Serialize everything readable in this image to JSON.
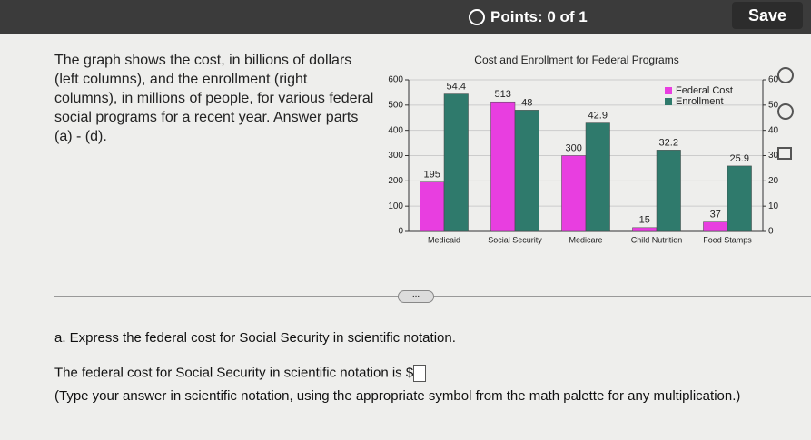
{
  "header": {
    "points": "Points: 0 of 1",
    "save": "Save"
  },
  "question": {
    "intro": "The graph shows the cost, in billions of dollars (left columns), and the enrollment (right columns), in millions of people, for various federal social programs for a recent year. Answer parts (a) - (d).",
    "more": "...",
    "part_a": "a. Express the federal cost for Social Security in scientific notation.",
    "answer_prompt": "The federal cost for Social Security in scientific notation is $",
    "instruction": "(Type your answer in scientific notation, using the appropriate symbol from the math palette for any multiplication.)"
  },
  "chart_data": {
    "type": "bar",
    "title": "Cost and Enrollment for Federal Programs",
    "categories": [
      "Medicaid",
      "Social Security",
      "Medicare",
      "Child Nutrition",
      "Food Stamps"
    ],
    "series": [
      {
        "name": "Federal Cost",
        "color": "#e83ee0",
        "values": [
          195,
          513,
          300,
          15,
          37
        ]
      },
      {
        "name": "Enrollment",
        "color": "#2f7a6c",
        "axis": "y2",
        "values": [
          54.4,
          48,
          42.9,
          32.2,
          25.9
        ]
      }
    ],
    "ylim": [
      0,
      600
    ],
    "yticks": [
      0,
      100,
      200,
      300,
      400,
      500,
      600
    ],
    "y2lim": [
      0,
      60
    ],
    "y2ticks": [
      0,
      10,
      20,
      30,
      40,
      50,
      60
    ],
    "grid": true,
    "legend": "upper right"
  }
}
